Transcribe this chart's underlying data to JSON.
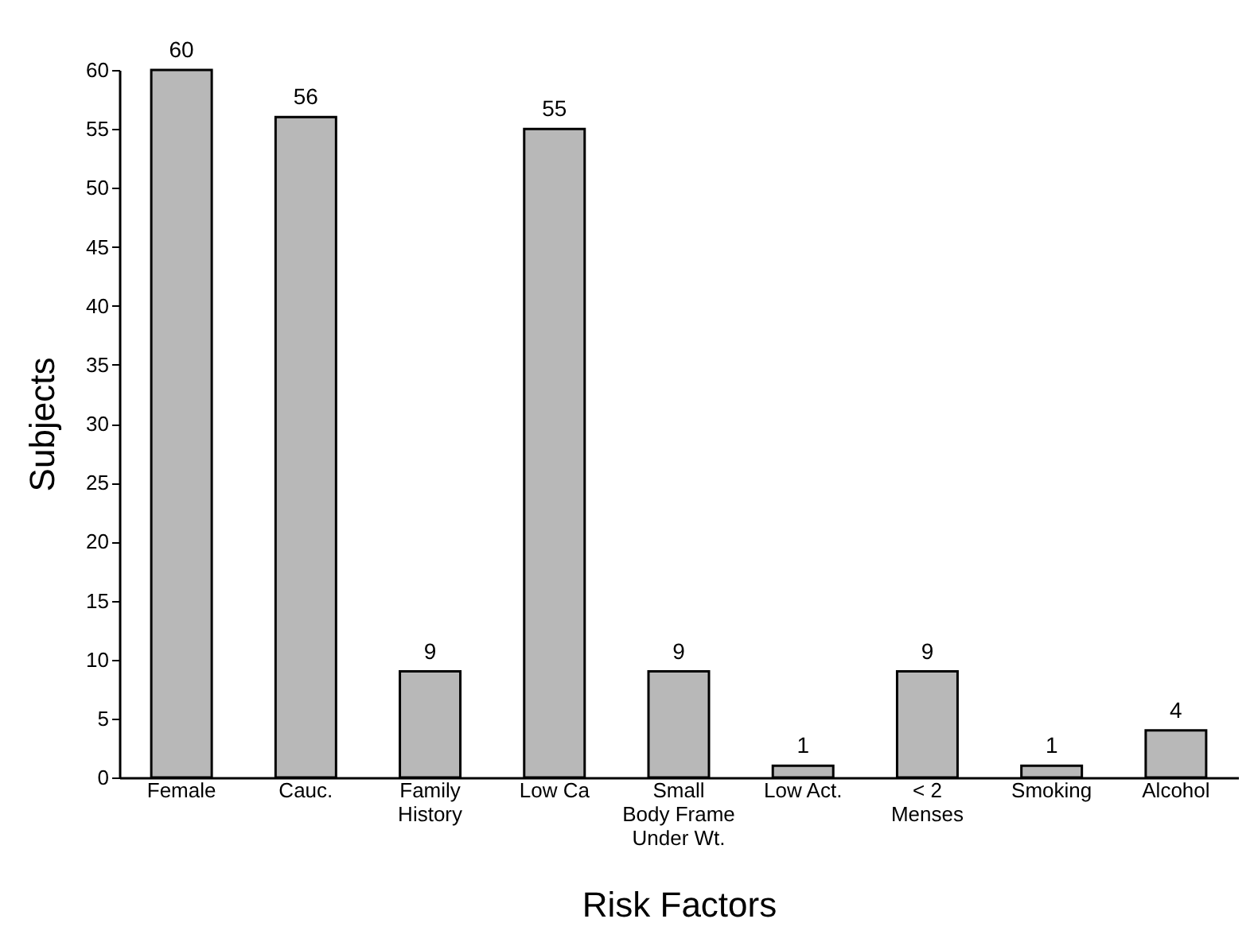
{
  "chart_data": {
    "type": "bar",
    "xlabel": "Risk Factors",
    "ylabel": "Subjects",
    "categories": [
      "Female",
      "Cauc.",
      "Family\nHistory",
      "Low Ca",
      "Small\nBody Frame\nUnder Wt.",
      "Low Act.",
      "< 2\nMenses",
      "Smoking",
      "Alcohol"
    ],
    "values": [
      60,
      56,
      9,
      55,
      9,
      1,
      9,
      1,
      4
    ],
    "color": "#b8b8b8",
    "ylim": [
      0,
      60
    ],
    "yticks": [
      0,
      5,
      10,
      15,
      20,
      25,
      30,
      35,
      40,
      45,
      50,
      55,
      60
    ],
    "grid": false,
    "data_labels": true
  }
}
